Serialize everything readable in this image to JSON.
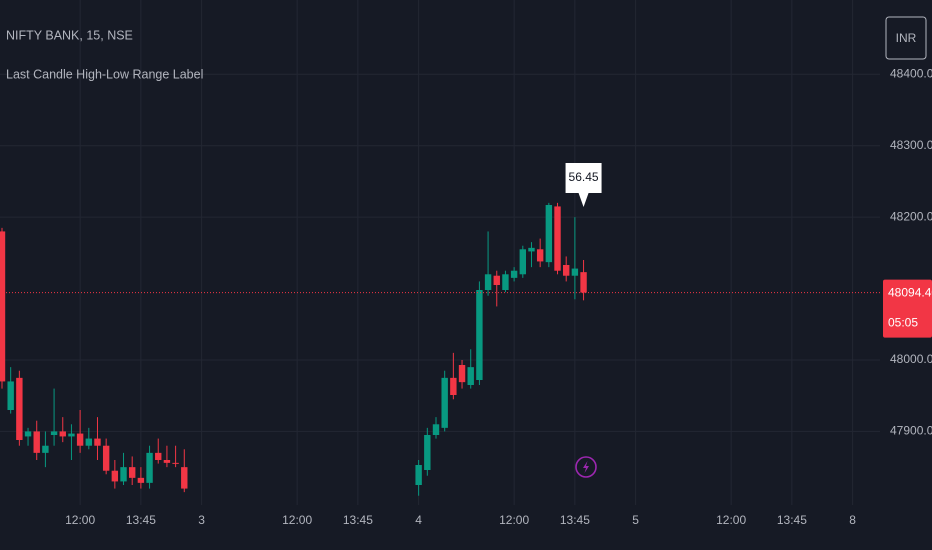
{
  "chart_data": {
    "type": "candlestick",
    "title": "NIFTY BANK, 15, NSE",
    "subtitle": "Last Candle High-Low Range Label",
    "currency": "INR",
    "up_color": "#089981",
    "down_color": "#f23645",
    "grid": true,
    "ylim": [
      47804,
      48504
    ],
    "yticks": [
      {
        "value": 47900,
        "label": "47900.00"
      },
      {
        "value": 48000,
        "label": "48000.00"
      },
      {
        "value": 48200,
        "label": "48200.00"
      },
      {
        "value": 48300,
        "label": "48300.00"
      },
      {
        "value": 48400,
        "label": "48400.00"
      }
    ],
    "categories": [
      null,
      null,
      null,
      null,
      null,
      null,
      null,
      null,
      null,
      "12:00",
      null,
      null,
      null,
      null,
      null,
      null,
      "13:45",
      null,
      null,
      null,
      null,
      null,
      null,
      "3",
      null,
      null,
      null,
      null,
      null,
      null,
      null,
      null,
      null,
      null,
      "12:00",
      null,
      null,
      null,
      null,
      null,
      null,
      "13:45",
      null,
      null,
      null,
      null,
      null,
      null,
      "4",
      null,
      null,
      null,
      null,
      null,
      null,
      null,
      null,
      null,
      null,
      "12:00",
      null,
      null,
      null,
      null,
      null,
      null,
      "13:45",
      null,
      null,
      null,
      null,
      null,
      null,
      "5",
      null,
      null,
      null,
      null,
      null,
      null,
      null,
      null,
      null,
      null,
      "12:00",
      null,
      null,
      null,
      null,
      null,
      null,
      "13:45",
      null,
      null,
      null,
      null,
      null,
      null,
      "8"
    ],
    "open": [
      48180,
      47930,
      47975,
      47893,
      47900,
      47870,
      47895,
      47900,
      47893,
      47897,
      47880,
      47890,
      47880,
      47845,
      47830,
      47850,
      47835,
      47828,
      47870,
      47860,
      47856,
      47850,
      null,
      null,
      null,
      null,
      null,
      null,
      null,
      null,
      null,
      null,
      null,
      null,
      null,
      null,
      null,
      null,
      null,
      null,
      null,
      null,
      null,
      null,
      null,
      null,
      null,
      null,
      47825,
      47846,
      47895,
      47905,
      47975,
      47993,
      47965,
      47972,
      48098,
      48118,
      48098,
      48115,
      48120,
      48152,
      48155,
      48137,
      48215,
      48133,
      48118,
      48123,
      null,
      null,
      null,
      null,
      null,
      null,
      null,
      null,
      null,
      null,
      null,
      null,
      null,
      null,
      null,
      null,
      null,
      null,
      null,
      null,
      null,
      null,
      null,
      null,
      null,
      null,
      null,
      null,
      null,
      null,
      null
    ],
    "high": [
      48185,
      47990,
      47985,
      47905,
      47915,
      47900,
      47960,
      47920,
      47910,
      47930,
      47905,
      47920,
      47890,
      47860,
      47870,
      47865,
      47850,
      47880,
      47890,
      47880,
      47880,
      47875,
      null,
      null,
      null,
      null,
      null,
      null,
      null,
      null,
      null,
      null,
      null,
      null,
      null,
      null,
      null,
      null,
      null,
      null,
      null,
      null,
      null,
      null,
      null,
      null,
      null,
      null,
      47860,
      47905,
      47920,
      47985,
      48010,
      48000,
      48015,
      48110,
      48180,
      48125,
      48125,
      48130,
      48160,
      48165,
      48170,
      48220,
      48220,
      48145,
      48200,
      48140,
      null,
      null,
      null,
      null,
      null,
      null,
      null,
      null,
      null,
      null,
      null,
      null,
      null,
      null,
      null,
      null,
      null,
      null,
      null,
      null,
      null,
      null,
      null,
      null,
      null,
      null,
      null,
      null,
      null,
      null,
      null
    ],
    "low": [
      47960,
      47925,
      47880,
      47880,
      47860,
      47850,
      47880,
      47885,
      47860,
      47870,
      47875,
      47860,
      47840,
      47820,
      47825,
      47825,
      47820,
      47820,
      47855,
      47850,
      47850,
      47815,
      null,
      null,
      null,
      null,
      null,
      null,
      null,
      null,
      null,
      null,
      null,
      null,
      null,
      null,
      null,
      null,
      null,
      null,
      null,
      null,
      null,
      null,
      null,
      null,
      null,
      null,
      47810,
      47838,
      47890,
      47900,
      47945,
      47960,
      47960,
      47965,
      48090,
      48075,
      48095,
      48110,
      48115,
      48130,
      48130,
      48130,
      48120,
      48110,
      48085,
      48083.55,
      null,
      null,
      null,
      null,
      null,
      null,
      null,
      null,
      null,
      null,
      null,
      null,
      null,
      null,
      null,
      null,
      null,
      null,
      null,
      null,
      null,
      null,
      null,
      null,
      null,
      null,
      null,
      null,
      null,
      null,
      null
    ],
    "close": [
      47970,
      47970,
      47888,
      47900,
      47870,
      47880,
      47900,
      47893,
      47897,
      47880,
      47890,
      47880,
      47845,
      47830,
      47850,
      47835,
      47828,
      47870,
      47860,
      47856,
      47855,
      47820,
      null,
      null,
      null,
      null,
      null,
      null,
      null,
      null,
      null,
      null,
      null,
      null,
      null,
      null,
      null,
      null,
      null,
      null,
      null,
      null,
      null,
      null,
      null,
      null,
      null,
      null,
      47853,
      47895,
      47910,
      47975,
      47951,
      47969,
      47990,
      48098,
      48120,
      48105,
      48120,
      48125,
      48155,
      48157,
      48138,
      48217,
      48125,
      48118,
      48128,
      48094.4,
      null,
      null,
      null,
      null,
      null,
      null,
      null,
      null,
      null,
      null,
      null,
      null,
      null,
      null,
      null,
      null,
      null,
      null,
      null,
      null,
      null,
      null,
      null,
      null,
      null,
      null,
      null,
      null,
      null,
      null,
      null
    ],
    "range_label": "56.45",
    "last_price": {
      "value": 48094.4,
      "label": "48094.40"
    },
    "countdown": "05:05"
  }
}
